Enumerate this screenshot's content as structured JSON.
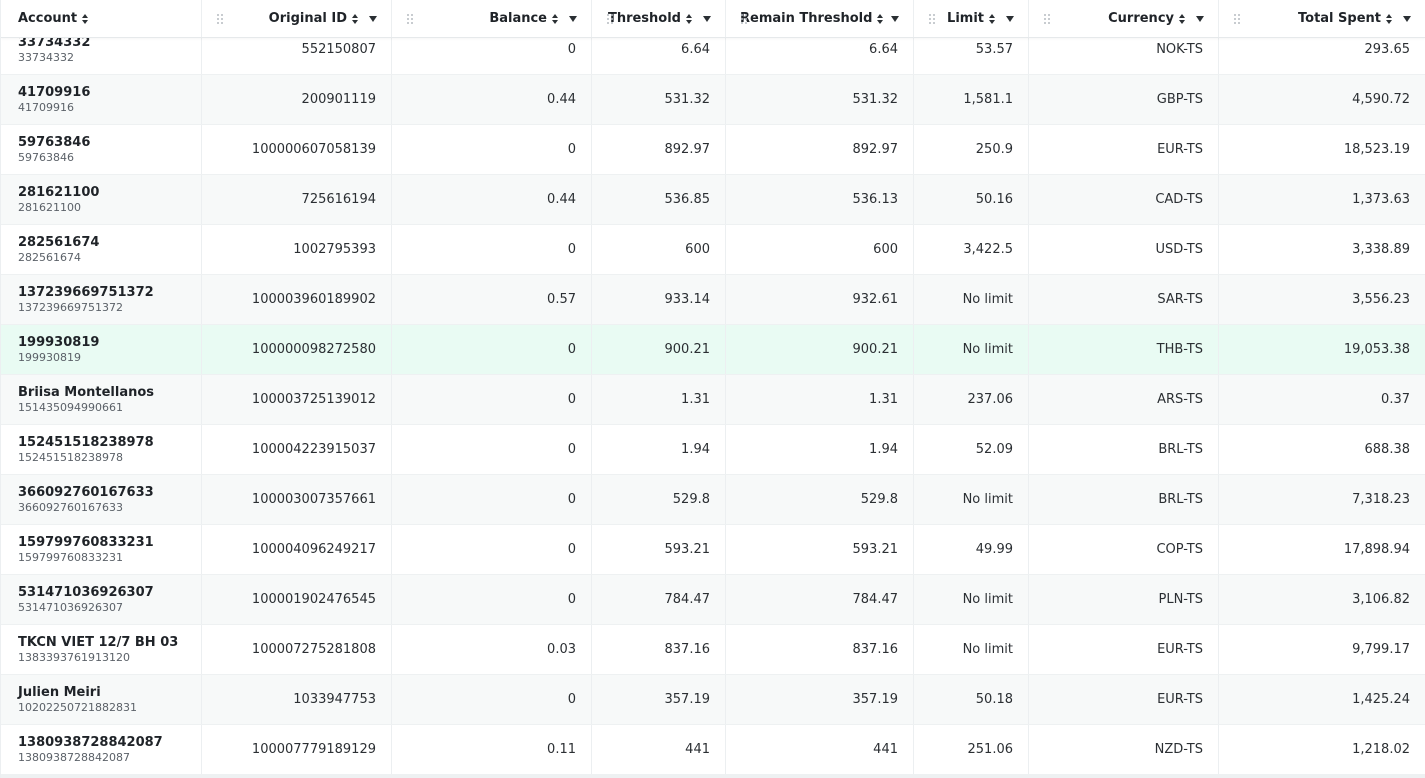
{
  "columns": [
    {
      "label": "Account",
      "name": "account"
    },
    {
      "label": "Original ID",
      "name": "original-id"
    },
    {
      "label": "Balance",
      "name": "balance"
    },
    {
      "label": "Threshold",
      "name": "threshold"
    },
    {
      "label": "Remain Threshold",
      "name": "remain-threshold"
    },
    {
      "label": "Limit",
      "name": "limit"
    },
    {
      "label": "Currency",
      "name": "currency"
    },
    {
      "label": "Total Spent",
      "name": "total-spent"
    }
  ],
  "rows": [
    {
      "account_name": "33734332",
      "account_id": "33734332",
      "original_id": "552150807",
      "balance": "0",
      "threshold": "6.64",
      "remain_threshold": "6.64",
      "limit": "53.57",
      "currency": "NOK-TS",
      "total_spent": "293.65"
    },
    {
      "account_name": "41709916",
      "account_id": "41709916",
      "original_id": "200901119",
      "balance": "0.44",
      "threshold": "531.32",
      "remain_threshold": "531.32",
      "limit": "1,581.1",
      "currency": "GBP-TS",
      "total_spent": "4,590.72"
    },
    {
      "account_name": "59763846",
      "account_id": "59763846",
      "original_id": "100000607058139",
      "balance": "0",
      "threshold": "892.97",
      "remain_threshold": "892.97",
      "limit": "250.9",
      "currency": "EUR-TS",
      "total_spent": "18,523.19"
    },
    {
      "account_name": "281621100",
      "account_id": "281621100",
      "original_id": "725616194",
      "balance": "0.44",
      "threshold": "536.85",
      "remain_threshold": "536.13",
      "limit": "50.16",
      "currency": "CAD-TS",
      "total_spent": "1,373.63"
    },
    {
      "account_name": "282561674",
      "account_id": "282561674",
      "original_id": "1002795393",
      "balance": "0",
      "threshold": "600",
      "remain_threshold": "600",
      "limit": "3,422.5",
      "currency": "USD-TS",
      "total_spent": "3,338.89"
    },
    {
      "account_name": "137239669751372",
      "account_id": "137239669751372",
      "original_id": "100003960189902",
      "balance": "0.57",
      "threshold": "933.14",
      "remain_threshold": "932.61",
      "limit": "No limit",
      "currency": "SAR-TS",
      "total_spent": "3,556.23"
    },
    {
      "account_name": "199930819",
      "account_id": "199930819",
      "original_id": "100000098272580",
      "balance": "0",
      "threshold": "900.21",
      "remain_threshold": "900.21",
      "limit": "No limit",
      "currency": "THB-TS",
      "total_spent": "19,053.38",
      "highlighted": true
    },
    {
      "account_name": "Briisa Montellanos",
      "account_id": "151435094990661",
      "original_id": "100003725139012",
      "balance": "0",
      "threshold": "1.31",
      "remain_threshold": "1.31",
      "limit": "237.06",
      "currency": "ARS-TS",
      "total_spent": "0.37"
    },
    {
      "account_name": "152451518238978",
      "account_id": "152451518238978",
      "original_id": "100004223915037",
      "balance": "0",
      "threshold": "1.94",
      "remain_threshold": "1.94",
      "limit": "52.09",
      "currency": "BRL-TS",
      "total_spent": "688.38"
    },
    {
      "account_name": "366092760167633",
      "account_id": "366092760167633",
      "original_id": "100003007357661",
      "balance": "0",
      "threshold": "529.8",
      "remain_threshold": "529.8",
      "limit": "No limit",
      "currency": "BRL-TS",
      "total_spent": "7,318.23"
    },
    {
      "account_name": "159799760833231",
      "account_id": "159799760833231",
      "original_id": "100004096249217",
      "balance": "0",
      "threshold": "593.21",
      "remain_threshold": "593.21",
      "limit": "49.99",
      "currency": "COP-TS",
      "total_spent": "17,898.94"
    },
    {
      "account_name": "531471036926307",
      "account_id": "531471036926307",
      "original_id": "100001902476545",
      "balance": "0",
      "threshold": "784.47",
      "remain_threshold": "784.47",
      "limit": "No limit",
      "currency": "PLN-TS",
      "total_spent": "3,106.82"
    },
    {
      "account_name": "TKCN VIET 12/7 BH 03",
      "account_id": "1383393761913120",
      "original_id": "100007275281808",
      "balance": "0.03",
      "threshold": "837.16",
      "remain_threshold": "837.16",
      "limit": "No limit",
      "currency": "EUR-TS",
      "total_spent": "9,799.17"
    },
    {
      "account_name": "Julien Meiri",
      "account_id": "10202250721882831",
      "original_id": "1033947753",
      "balance": "0",
      "threshold": "357.19",
      "remain_threshold": "357.19",
      "limit": "50.18",
      "currency": "EUR-TS",
      "total_spent": "1,425.24"
    },
    {
      "account_name": "1380938728842087",
      "account_id": "1380938728842087",
      "original_id": "100007779189129",
      "balance": "0.11",
      "threshold": "441",
      "remain_threshold": "441",
      "limit": "251.06",
      "currency": "NZD-TS",
      "total_spent": "1,218.02"
    }
  ]
}
